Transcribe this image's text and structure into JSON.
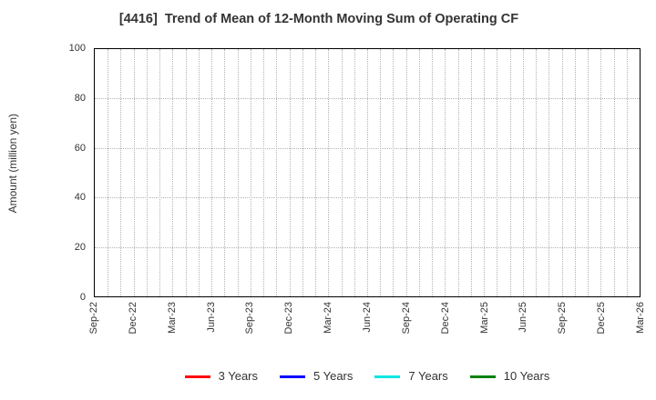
{
  "chart_data": {
    "type": "line",
    "title": "[4416]  Trend of Mean of 12-Month Moving Sum of Operating CF",
    "ylabel": "Amount (million yen)",
    "xlabel": "",
    "ylim": [
      0,
      100
    ],
    "yticks": [
      0,
      20,
      40,
      60,
      80,
      100
    ],
    "x_range": [
      "Sep-22",
      "Mar-26"
    ],
    "x_months": 42,
    "x_tick_labels": [
      "Sep-22",
      "Dec-22",
      "Mar-23",
      "Jun-23",
      "Sep-23",
      "Dec-23",
      "Mar-24",
      "Jun-24",
      "Sep-24",
      "Dec-24",
      "Mar-25",
      "Jun-25",
      "Sep-25",
      "Dec-25",
      "Mar-26"
    ],
    "x_tick_interval_months": 3,
    "grid": {
      "on": true,
      "style": "dotted",
      "color": "#b3b3b3",
      "vertical_interval_months": 1,
      "horizontal_interval": 20
    },
    "legend_position": "bottom-center",
    "series": [
      {
        "name": "3 Years",
        "color": "#ff0000",
        "values": []
      },
      {
        "name": "5 Years",
        "color": "#0000ff",
        "values": []
      },
      {
        "name": "7 Years",
        "color": "#00e5e5",
        "values": []
      },
      {
        "name": "10 Years",
        "color": "#008000",
        "values": []
      }
    ],
    "note": "No data lines are visible in the plot area; empty grid only."
  },
  "colors": {
    "axis": "#000000",
    "grid": "#b3b3b3",
    "text": "#333333",
    "background": "#ffffff"
  }
}
